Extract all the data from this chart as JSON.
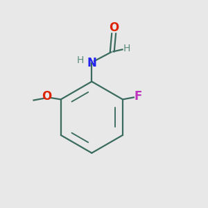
{
  "background_color": "#e8e8e8",
  "bond_color": "#3a6b5e",
  "atom_colors": {
    "O": "#dd2200",
    "N": "#2222ee",
    "F": "#bb33bb",
    "H": "#5a8a7a",
    "C": "#3a6b5e"
  },
  "figsize": [
    3.0,
    3.0
  ],
  "dpi": 100
}
